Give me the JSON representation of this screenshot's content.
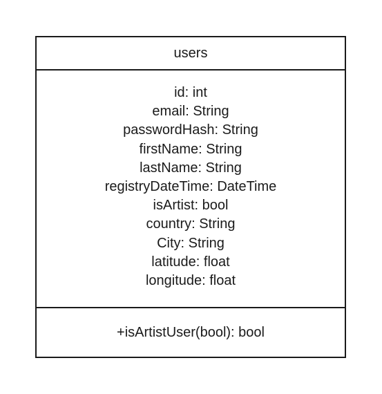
{
  "class": {
    "name": "users",
    "attributes": [
      "id: int",
      "email: String",
      "passwordHash: String",
      "firstName: String",
      "lastName: String",
      "registryDateTime: DateTime",
      "isArtist: bool",
      "country: String",
      "City: String",
      "latitude: float",
      "longitude: float"
    ],
    "operations": [
      "+isArtistUser(bool): bool"
    ]
  }
}
